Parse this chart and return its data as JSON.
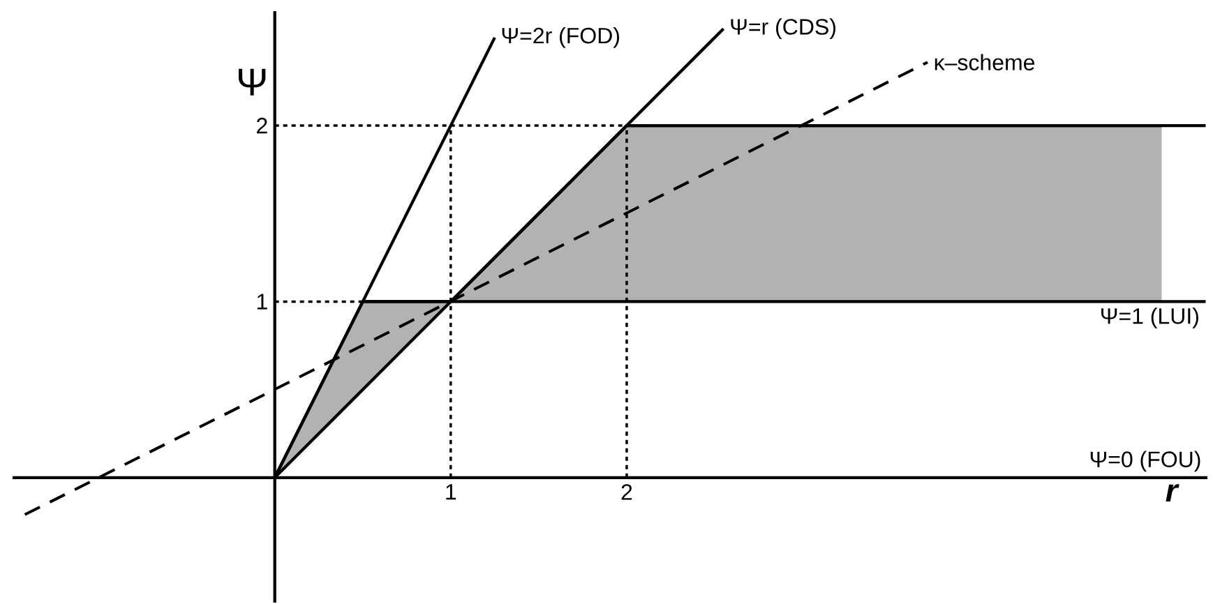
{
  "chart_data": {
    "type": "line",
    "xlabel": "r",
    "ylabel": "Ψ",
    "xlim": [
      -1.49,
      5.3
    ],
    "ylim": [
      -0.71,
      2.65
    ],
    "xticks": [
      1,
      2
    ],
    "yticks": [
      1,
      2
    ],
    "grid": false,
    "series": [
      {
        "color": "#000000",
        "line_style": "solid",
        "x": [
          0,
          0.5,
          1,
          2,
          5.04
        ],
        "lower": [
          0,
          0.5,
          1,
          1,
          1
        ],
        "upper": [
          0,
          1,
          1,
          2,
          2
        ],
        "values": [
          0,
          1,
          1,
          2,
          2
        ]
      },
      {
        "color": "#000000",
        "line_style": "dotted",
        "x": [
          0,
          2
        ],
        "values": [
          2,
          2
        ]
      },
      {
        "color": "#000000",
        "line_style": "dotted",
        "x": [
          1,
          1
        ],
        "values": [
          0,
          2
        ]
      },
      {
        "color": "#000000",
        "line_style": "dotted",
        "x": [
          2,
          2
        ],
        "values": [
          0,
          2
        ]
      },
      {
        "color": "#000000",
        "line_style": "dotted",
        "x": [
          0,
          0.5
        ],
        "values": [
          1,
          1
        ]
      },
      {
        "name": "Ψ=2r (FOD)",
        "color": "#000000",
        "line_style": "solid",
        "x": [
          0,
          1.25
        ],
        "values": [
          0,
          2.5
        ]
      },
      {
        "name": "Ψ=r (CDS)",
        "color": "#000000",
        "line_style": "solid",
        "x": [
          0,
          2.55
        ],
        "values": [
          0,
          2.55
        ]
      },
      {
        "name": "κ–scheme",
        "color": "#000000",
        "line_style": "dashed",
        "x": [
          -1.42,
          3.71
        ],
        "values": [
          -0.21,
          2.36
        ]
      },
      {
        "name": "Ψ=1 (LUI)",
        "color": "#000000",
        "line_style": "solid",
        "x": [
          0.5,
          5.29
        ],
        "values": [
          1,
          1
        ]
      },
      {
        "color": "#000000",
        "line_style": "solid",
        "x": [
          2,
          5.29
        ],
        "values": [
          2,
          2
        ]
      },
      {
        "name": "Ψ=0 (FOU)",
        "color": "#000000",
        "line_style": "solid",
        "x": [
          -1.49,
          5.3
        ],
        "values": [
          0,
          0
        ]
      }
    ]
  }
}
